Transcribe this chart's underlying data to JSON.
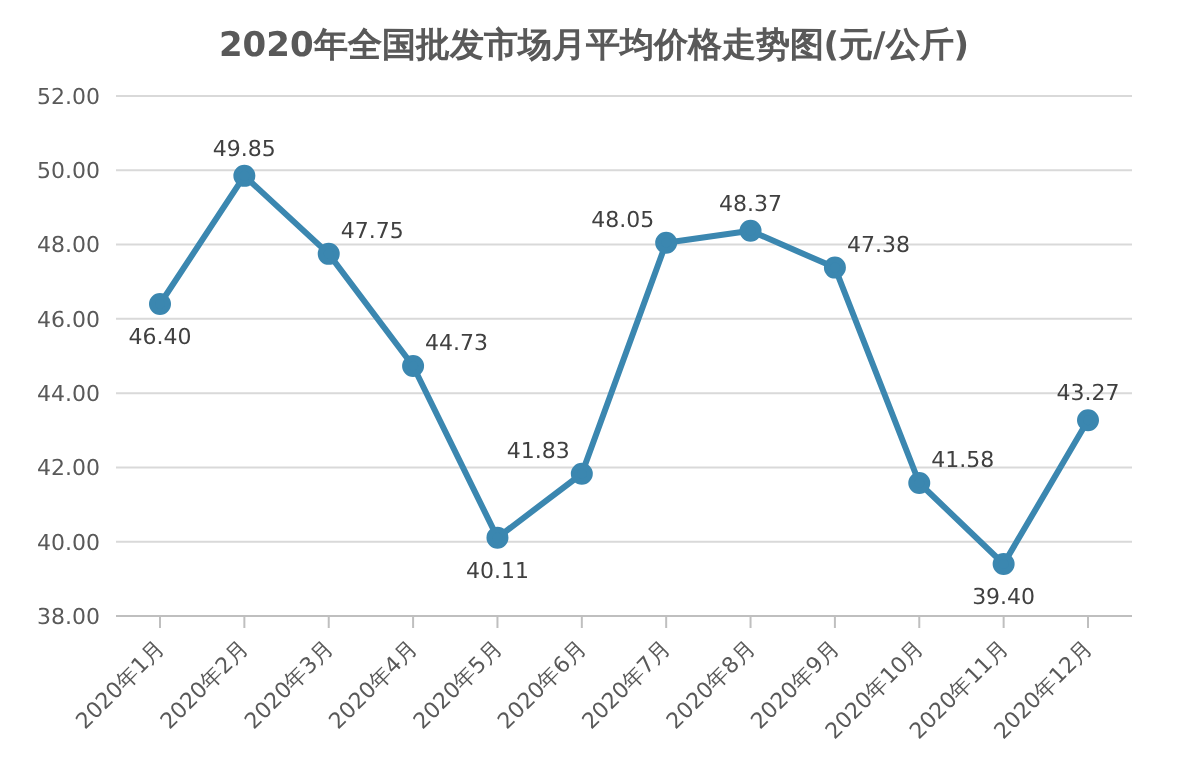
{
  "chart_data": {
    "type": "line",
    "title": "2020年全国批发市场月平均价格走势图(元/公斤)",
    "categories": [
      "2020年1月",
      "2020年2月",
      "2020年3月",
      "2020年4月",
      "2020年5月",
      "2020年6月",
      "2020年7月",
      "2020年8月",
      "2020年9月",
      "2020年10月",
      "2020年11月",
      "2020年12月"
    ],
    "series": [
      {
        "color": "#3b87b0",
        "values": [
          46.4,
          49.85,
          47.75,
          44.73,
          40.11,
          41.83,
          48.05,
          48.37,
          47.38,
          41.58,
          39.4,
          43.27
        ],
        "value_labels": [
          "46.40",
          "49.85",
          "47.75",
          "44.73",
          "40.11",
          "41.83",
          "48.05",
          "48.37",
          "47.38",
          "41.58",
          "39.40",
          "43.27"
        ]
      }
    ],
    "ylim": [
      38,
      52
    ],
    "yticks": [
      {
        "value": 38,
        "label": "38.00"
      },
      {
        "value": 40,
        "label": "40.00"
      },
      {
        "value": 42,
        "label": "42.00"
      },
      {
        "value": 44,
        "label": "44.00"
      },
      {
        "value": 46,
        "label": "46.00"
      },
      {
        "value": 48,
        "label": "48.00"
      },
      {
        "value": 50,
        "label": "50.00"
      },
      {
        "value": 52,
        "label": "52.00"
      }
    ],
    "grid": "y",
    "marker": "circle",
    "line_style": "solid"
  }
}
